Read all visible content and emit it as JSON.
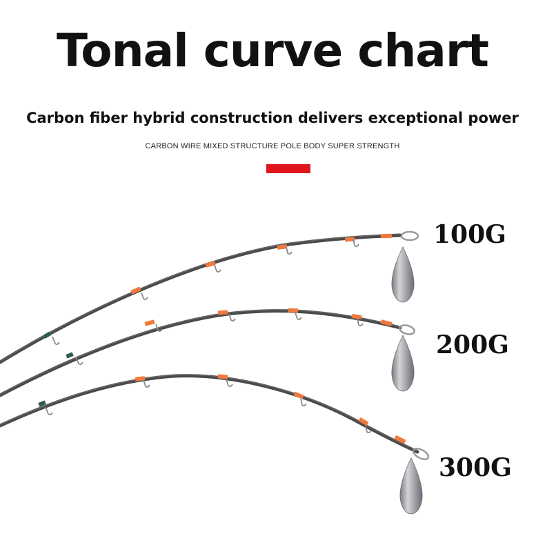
{
  "header": {
    "title": "Tonal curve chart",
    "subtitle": "Carbon fiber hybrid construction delivers exceptional power",
    "subtitle_small": "CARBON WIRE MIXED STRUCTURE POLE BODY SUPER STRENGTH",
    "accent_color": "#e0161d"
  },
  "rods": [
    {
      "load_label": "100G"
    },
    {
      "load_label": "200G"
    },
    {
      "load_label": "300G"
    }
  ],
  "colors": {
    "rod_blank": "#4a4a4a",
    "guide_wrap": "#f07a3c",
    "sinker": "#a9a9ad"
  }
}
